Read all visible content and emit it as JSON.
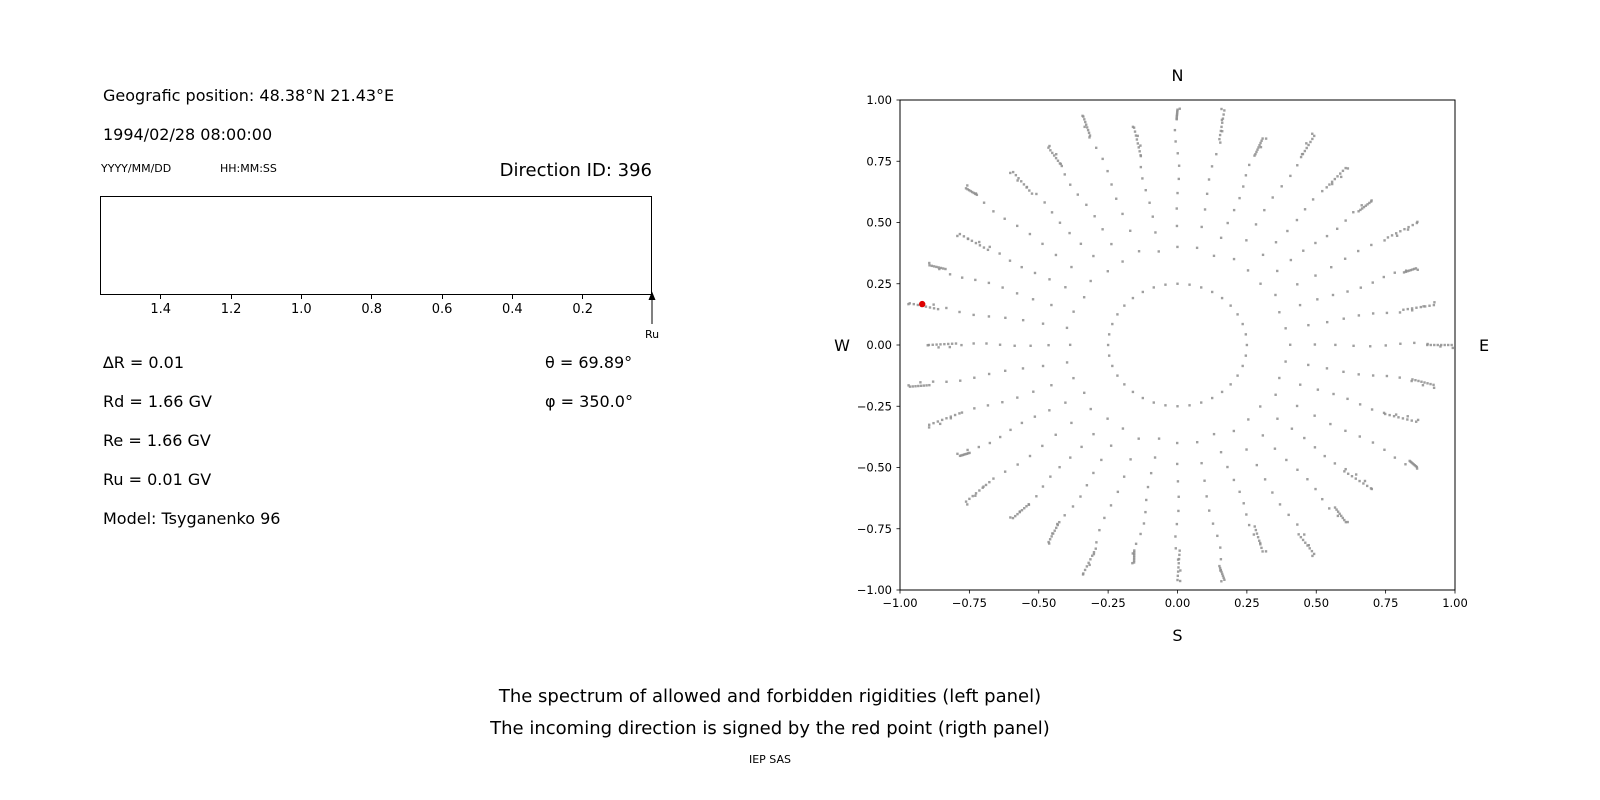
{
  "header": {
    "geo_position": "Geografic position: 48.38°N 21.43°E",
    "datetime": "1994/02/28 08:00:00",
    "date_format": "YYYY/MM/DD",
    "time_format": "HH:MM:SS",
    "direction_id": "Direction ID: 396"
  },
  "params": {
    "delta_r": "∆R = 0.01",
    "rd": "Rd = 1.66 GV",
    "re": "Re = 1.66 GV",
    "ru": "Ru = 0.01 GV",
    "model": "Model: Tsyganenko 96",
    "theta": "θ = 69.89°",
    "phi": "φ = 350.0°"
  },
  "chart_data": [
    {
      "type": "line",
      "title": "",
      "xlabel": "",
      "ylabel": "",
      "xlim": [
        1.57,
        0.0
      ],
      "x_axis_reversed": true,
      "x_ticks": [
        1.4,
        1.2,
        1.0,
        0.8,
        0.6,
        0.4,
        0.2
      ],
      "x_tick_labels": [
        "1.4",
        "1.2",
        "1.0",
        "0.8",
        "0.6",
        "0.4",
        "0.2"
      ],
      "grid": false,
      "plot_is_empty": true,
      "series": [],
      "annotations": [
        {
          "label": "Ru",
          "x": 0.01,
          "symbol": "up-arrow"
        }
      ]
    },
    {
      "type": "scatter",
      "title": "",
      "xlabel": "",
      "ylabel": "",
      "compass_labels": {
        "north": "N",
        "south": "S",
        "east": "E",
        "west": "W"
      },
      "xlim": [
        -1,
        1
      ],
      "ylim": [
        -1,
        1
      ],
      "x_tick_values": [
        -1,
        -0.75,
        -0.5,
        -0.25,
        0,
        0.25,
        0.5,
        0.75,
        1
      ],
      "x_tick_labels": [
        "−1.00",
        "−0.75",
        "−0.50",
        "−0.25",
        "0.00",
        "0.25",
        "0.50",
        "0.75",
        "1.00"
      ],
      "y_tick_values": [
        1,
        0.75,
        0.5,
        0.25,
        0,
        -0.25,
        -0.5,
        -0.75,
        -1
      ],
      "y_tick_labels": [
        "1.00",
        "0.75",
        "0.50",
        "0.25",
        "0.00",
        "−0.25",
        "−0.50",
        "−0.75",
        "−1.00"
      ],
      "grid": false,
      "legend": false,
      "dot_color": "#8e8e8e",
      "red_point": {
        "x": -0.92,
        "y": 0.167,
        "color": "#dd0000"
      },
      "spokes": {
        "count": 36,
        "angle_step_deg": 10,
        "start_angle_deg": 0,
        "inner_ring_radius": 0.25,
        "outer_radius_min": 0.9,
        "outer_radius_max": 1.0,
        "points_per_spoke": 12,
        "radial_exponent": 0.65,
        "tip_cluster_points": 8,
        "tip_cluster_max_span": 0.12,
        "dot_size": 2.4
      }
    }
  ],
  "caption": {
    "line1": "The spectrum of allowed and forbidden rigidities (left panel)",
    "line2": "The incoming direction is signed by the red point (rigth panel)",
    "credit": "IEP SAS"
  }
}
